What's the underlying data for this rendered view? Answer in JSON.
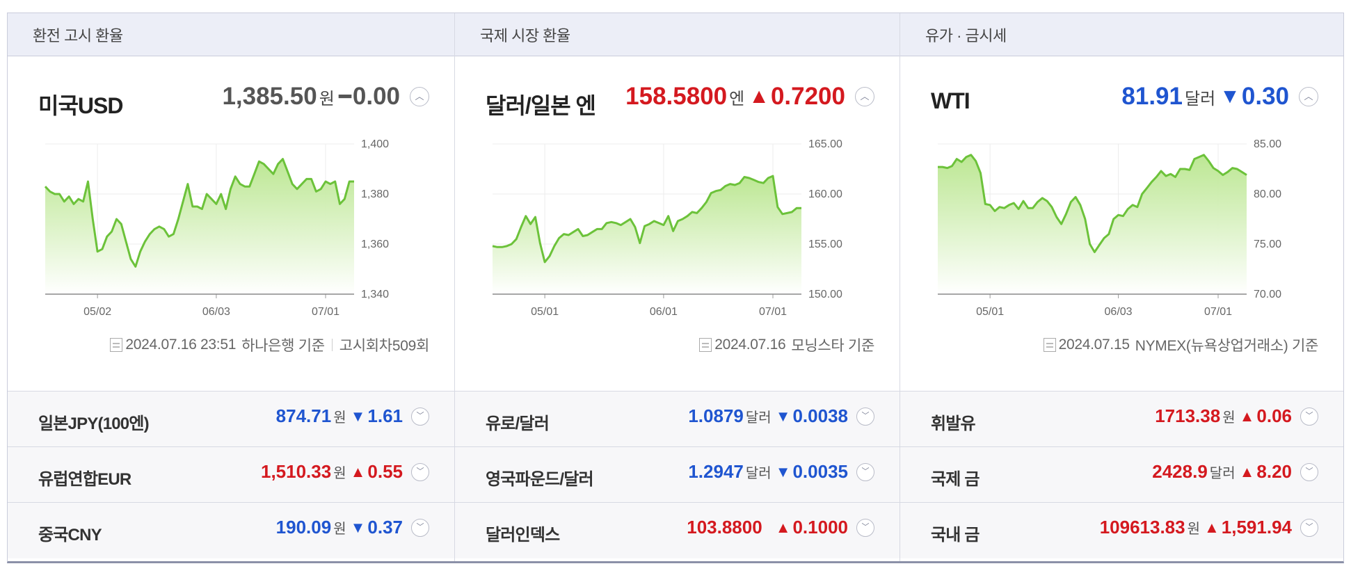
{
  "colors": {
    "up": "#d4191f",
    "down": "#1f55d0",
    "flat": "#555555",
    "line": "#6cc23a",
    "fill_top": "#b9e68e",
    "fill_bottom": "#ffffff"
  },
  "columns": [
    {
      "header": "환전 고시 환율",
      "main": {
        "name": "미국USD",
        "value": "1,385.50",
        "unit": "원",
        "change": "0.00",
        "direction": "flat",
        "arrow": "━",
        "toggle_icon": "chevron-up-icon"
      },
      "footer": {
        "date": "2024.07.16 23:51",
        "source": "하나은행 기준",
        "extra": "고시회차509회"
      },
      "rows": [
        {
          "name": "일본JPY(100엔)",
          "value": "874.71",
          "unit": "원",
          "change": "1.61",
          "direction": "down",
          "arrow": "▼"
        },
        {
          "name": "유럽연합EUR",
          "value": "1,510.33",
          "unit": "원",
          "change": "0.55",
          "direction": "up",
          "arrow": "▲"
        },
        {
          "name": "중국CNY",
          "value": "190.09",
          "unit": "원",
          "change": "0.37",
          "direction": "down",
          "arrow": "▼"
        }
      ]
    },
    {
      "header": "국제 시장 환율",
      "main": {
        "name": "달러/일본 엔",
        "value": "158.5800",
        "unit": "엔",
        "change": "0.7200",
        "direction": "up",
        "arrow": "▲",
        "toggle_icon": "chevron-up-icon"
      },
      "footer": {
        "date": "2024.07.16",
        "source": "모닝스타 기준",
        "extra": ""
      },
      "rows": [
        {
          "name": "유로/달러",
          "value": "1.0879",
          "unit": "달러",
          "change": "0.0038",
          "direction": "down",
          "arrow": "▼"
        },
        {
          "name": "영국파운드/달러",
          "value": "1.2947",
          "unit": "달러",
          "change": "0.0035",
          "direction": "down",
          "arrow": "▼"
        },
        {
          "name": "달러인덱스",
          "value": "103.8800",
          "unit": "",
          "change": "0.1000",
          "direction": "up",
          "arrow": "▲"
        }
      ]
    },
    {
      "header": "유가 · 금시세",
      "main": {
        "name": "WTI",
        "value": "81.91",
        "unit": "달러",
        "change": "0.30",
        "direction": "down",
        "arrow": "▼",
        "toggle_icon": "chevron-up-icon"
      },
      "footer": {
        "date": "2024.07.15",
        "source": "NYMEX(뉴욕상업거래소) 기준",
        "extra": ""
      },
      "rows": [
        {
          "name": "휘발유",
          "value": "1713.38",
          "unit": "원",
          "change": "0.06",
          "direction": "up",
          "arrow": "▲"
        },
        {
          "name": "국제 금",
          "value": "2428.9",
          "unit": "달러",
          "change": "8.20",
          "direction": "up",
          "arrow": "▲"
        },
        {
          "name": "국내 금",
          "value": "109613.83",
          "unit": "원",
          "change": "1,591.94",
          "direction": "up",
          "arrow": "▲"
        }
      ]
    }
  ],
  "chart_data": [
    {
      "type": "area",
      "series_label": "미국USD",
      "ylim": [
        1340,
        1400
      ],
      "yticks": [
        "1,400",
        "1,380",
        "1,360",
        "1,340"
      ],
      "ytick_values": [
        1400,
        1380,
        1360,
        1340
      ],
      "xticks": [
        "05/02",
        "06/03",
        "07/01"
      ],
      "xtick_index": [
        11,
        36,
        59
      ],
      "grid": true,
      "values": [
        1383,
        1381,
        1380,
        1380,
        1377,
        1379,
        1376,
        1378,
        1377,
        1385,
        1370,
        1357,
        1358,
        1363,
        1365,
        1370,
        1368,
        1361,
        1354,
        1351,
        1357,
        1361,
        1364,
        1366,
        1367,
        1366,
        1363,
        1364,
        1370,
        1377,
        1384,
        1375,
        1375,
        1374,
        1380,
        1378,
        1376,
        1380,
        1374,
        1382,
        1387,
        1384,
        1383,
        1383,
        1388,
        1393,
        1392,
        1390,
        1388,
        1392,
        1394,
        1389,
        1384,
        1382,
        1384,
        1386,
        1386,
        1381,
        1382,
        1385,
        1384,
        1385,
        1376,
        1378,
        1385,
        1385
      ]
    },
    {
      "type": "area",
      "series_label": "달러/일본 엔",
      "ylim": [
        150,
        165
      ],
      "yticks": [
        "165.00",
        "160.00",
        "155.00",
        "150.00"
      ],
      "ytick_values": [
        165,
        160,
        155,
        150
      ],
      "xticks": [
        "05/01",
        "06/01",
        "07/01"
      ],
      "xtick_index": [
        11,
        36,
        59
      ],
      "grid": true,
      "values": [
        154.8,
        154.7,
        154.7,
        154.8,
        155.0,
        155.5,
        156.7,
        157.8,
        157.0,
        157.7,
        155.1,
        153.2,
        153.8,
        154.8,
        155.6,
        156.0,
        155.9,
        156.2,
        156.5,
        155.8,
        155.9,
        156.2,
        156.5,
        156.5,
        157.1,
        157.2,
        157.1,
        156.9,
        157.2,
        157.5,
        156.7,
        155.1,
        156.8,
        157.0,
        157.3,
        157.1,
        156.9,
        157.8,
        156.3,
        157.3,
        157.5,
        157.8,
        158.2,
        158.1,
        158.6,
        159.2,
        160.1,
        160.3,
        160.4,
        160.8,
        161.0,
        160.9,
        161.1,
        161.7,
        161.6,
        161.4,
        161.2,
        161.1,
        161.6,
        161.8,
        158.7,
        158.0,
        158.1,
        158.2,
        158.6,
        158.6
      ]
    },
    {
      "type": "area",
      "series_label": "WTI",
      "ylim": [
        70,
        85
      ],
      "yticks": [
        "85.00",
        "80.00",
        "75.00",
        "70.00"
      ],
      "ytick_values": [
        85,
        80,
        75,
        70
      ],
      "xticks": [
        "05/01",
        "06/03",
        "07/01"
      ],
      "xtick_index": [
        11,
        38,
        59
      ],
      "grid": true,
      "values": [
        82.7,
        82.7,
        82.6,
        82.8,
        83.5,
        83.2,
        83.7,
        83.9,
        83.3,
        82.1,
        79.0,
        78.9,
        78.3,
        78.7,
        78.6,
        78.9,
        79.1,
        78.5,
        79.3,
        78.6,
        78.6,
        79.2,
        79.6,
        79.3,
        78.7,
        77.7,
        77.0,
        78.0,
        79.2,
        79.7,
        78.9,
        77.5,
        75.0,
        74.2,
        74.9,
        75.6,
        76.0,
        77.5,
        77.9,
        77.8,
        78.5,
        78.9,
        78.7,
        80.0,
        80.6,
        81.2,
        81.7,
        82.3,
        81.8,
        82.0,
        81.7,
        82.5,
        82.5,
        82.4,
        83.5,
        83.7,
        83.9,
        83.3,
        82.6,
        82.3,
        81.9,
        82.2,
        82.6,
        82.5,
        82.2,
        81.9
      ]
    }
  ]
}
